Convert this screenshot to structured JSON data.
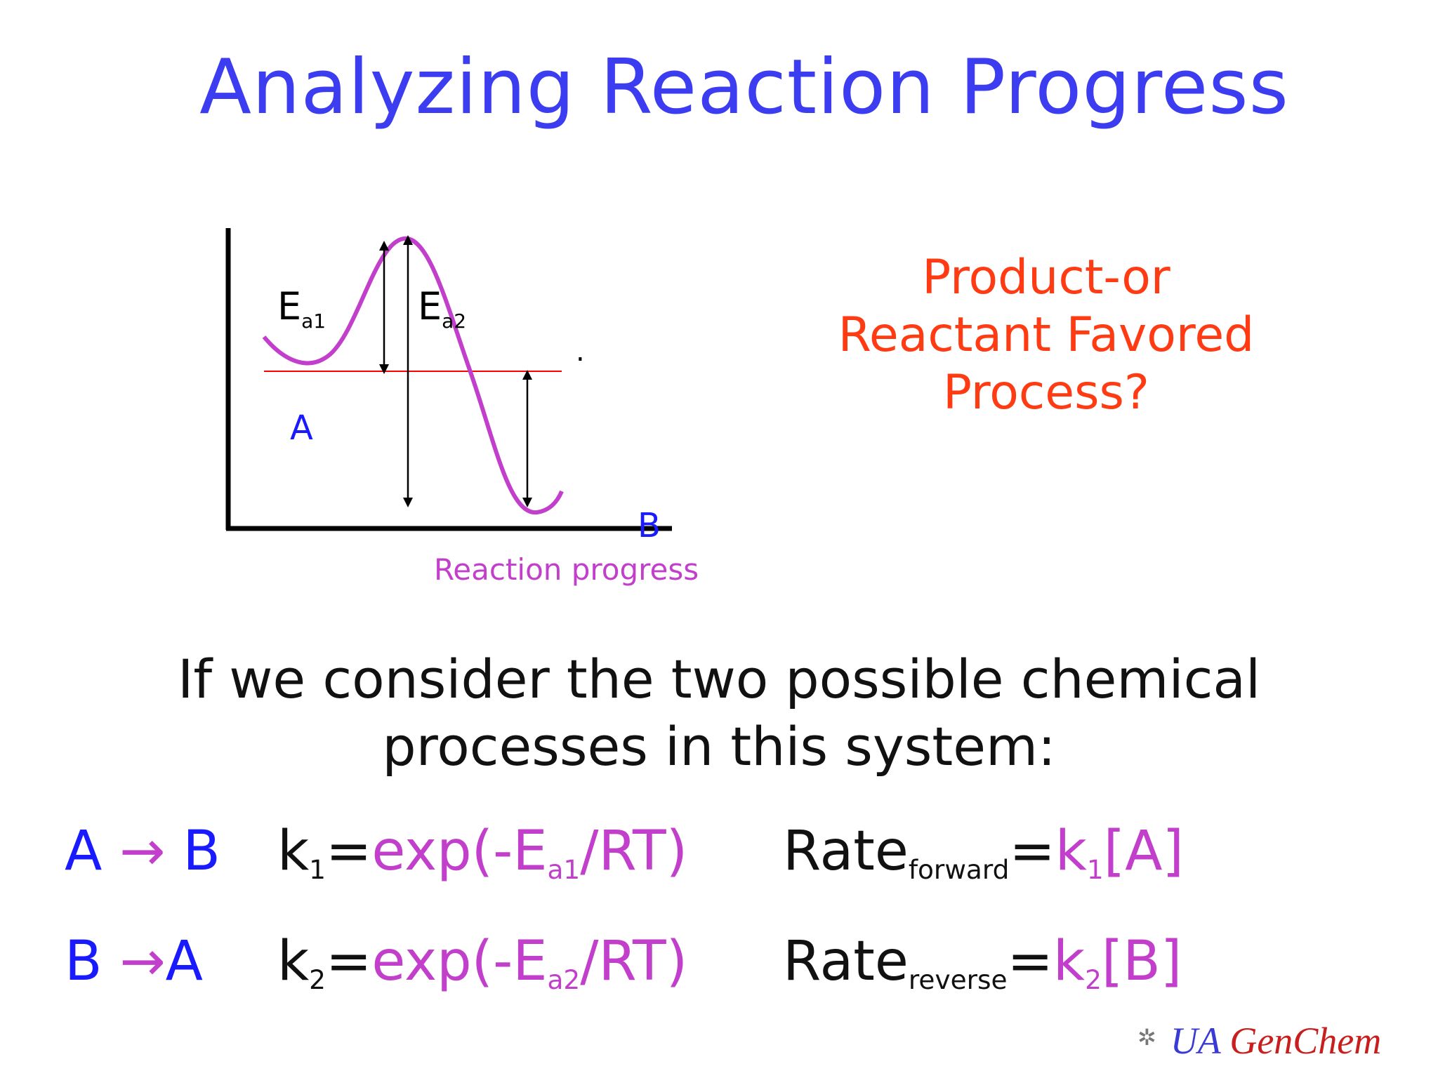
{
  "slide": {
    "title": "Analyzing Reaction Progress",
    "question": [
      "Product-or",
      "Reactant Favored",
      "Process?"
    ],
    "intro": [
      "If we consider the two possible chemical",
      "processes in this system:"
    ]
  },
  "diagram": {
    "label_ea1": "E",
    "label_ea1_sub": "a1",
    "label_ea2": "E",
    "label_ea2_sub": "a2",
    "label_a": "A",
    "label_b": "B",
    "x_axis_label": "Reaction progress",
    "dot": ".",
    "colors": {
      "curve": "#c23fcc",
      "reference_line": "#ff0000",
      "axes": "#000000",
      "labels_ab": "#1a1aff"
    }
  },
  "equations": [
    {
      "reaction_lhs": "A",
      "reaction_arrow": "→",
      "reaction_rhs": "B",
      "k": "k",
      "k_sub": "1",
      "k_eq": "=",
      "k_expr_pre": "exp(-E",
      "k_expr_sub": "a1",
      "k_expr_post": "/RT)",
      "rate": "Rate",
      "rate_sub": "forward",
      "rate_eq": "=",
      "rate_k": "k",
      "rate_k_sub": "1",
      "rate_conc": "[A]"
    },
    {
      "reaction_lhs": "B",
      "reaction_arrow": "→",
      "reaction_rhs": "A",
      "k": "k",
      "k_sub": "2",
      "k_eq": "=",
      "k_expr_pre": "exp(-E",
      "k_expr_sub": "a2",
      "k_expr_post": "/RT)",
      "rate": "Rate",
      "rate_sub": "reverse",
      "rate_eq": "=",
      "rate_k": "k",
      "rate_k_sub": "2",
      "rate_conc": "[B]"
    }
  ],
  "footer": {
    "ua": "UA",
    "genchem": "GenChem",
    "logo_icon": "gear-logo-icon"
  }
}
